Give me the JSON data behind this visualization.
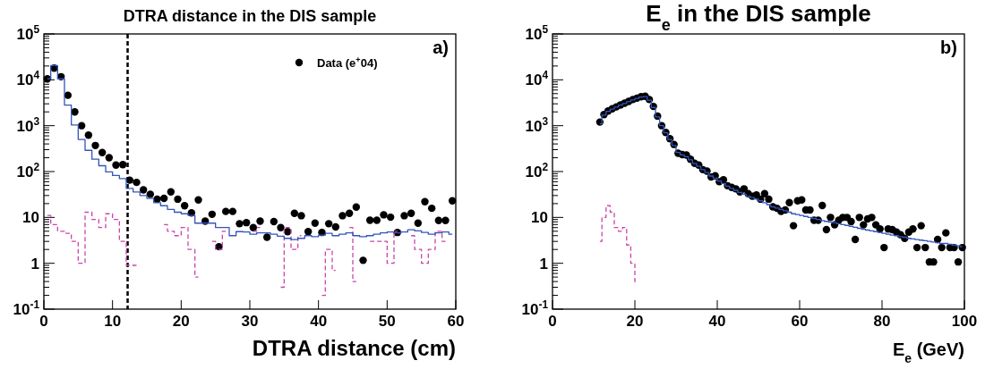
{
  "chart_data": [
    {
      "type": "scatter",
      "title": "DTRA distance in the DIS sample",
      "xlabel": "DTRA distance (cm)",
      "log": "y",
      "grid": false,
      "legend": "top right",
      "annotations": [
        "a)"
      ],
      "xlim": [
        0,
        60
      ],
      "xticks": [
        0,
        10,
        20,
        30,
        40,
        50,
        60
      ],
      "ylim": [
        0.1,
        100000
      ],
      "yticks": [
        {
          "value": 0.1,
          "label": "10$^{-1}$"
        },
        {
          "value": 1,
          "label": "1"
        },
        {
          "value": 10,
          "label": "10"
        },
        {
          "value": 100,
          "label": "10$^{2}$"
        },
        {
          "value": 1000,
          "label": "10$^{3}$"
        },
        {
          "value": 10000,
          "label": "10$^{4}$"
        },
        {
          "value": 100000,
          "label": "10$^{5}$"
        }
      ],
      "ref_lines": [
        {
          "axis": "x",
          "value": 12.2,
          "color": "#000000",
          "line_style": "dashed"
        }
      ],
      "series": [
        {
          "name": "Data (e$^{+}$04)",
          "marker": "circle",
          "color": "#000000",
          "x": [
            0.5,
            1.5,
            2.5,
            3.5,
            4.5,
            5.5,
            6.5,
            7.5,
            8.5,
            9.5,
            10.5,
            11.5,
            12.5,
            13.5,
            14.5,
            15.5,
            16.5,
            17.5,
            18.5,
            19.5,
            20.5,
            21.5,
            22.5,
            23.5,
            24.5,
            25.5,
            26.5,
            27.5,
            28.5,
            29.5,
            30.5,
            31.5,
            32.5,
            33.5,
            34.5,
            35.5,
            36.5,
            37.5,
            38.5,
            39.5,
            40.5,
            41.5,
            42.5,
            43.5,
            44.5,
            45.5,
            46.5,
            47.5,
            48.5,
            49.5,
            50.5,
            51.5,
            52.5,
            53.5,
            54.5,
            55.5,
            56.5,
            57.5,
            58.5,
            59.5
          ],
          "values": [
            10500,
            18000,
            11700,
            4600,
            2000,
            1000,
            620,
            370,
            260,
            200,
            138,
            142,
            65,
            58,
            40,
            32,
            25,
            26,
            36,
            25,
            18,
            12.6,
            24,
            8.3,
            11.7,
            2.3,
            13.5,
            13.5,
            7.3,
            7.7,
            6.0,
            8.3,
            3.7,
            8.1,
            6.0,
            4.9,
            12.3,
            10.9,
            4.9,
            7.5,
            4.7,
            7.3,
            6.2,
            10.9,
            12.3,
            16.8,
            1.16,
            8.7,
            8.7,
            11.4,
            10.1,
            4.7,
            10.9,
            12.3,
            7.5,
            22,
            15.8,
            8.6,
            8.6,
            23
          ]
        },
        {
          "type": "step",
          "marker": "none",
          "color": "#cc44aa",
          "line_style": "dashed",
          "x": [
            0.5,
            1.5,
            2.5,
            3.5,
            4.5,
            5.5,
            6.5,
            7.5,
            8.5,
            9.5,
            10.5,
            11.5,
            12.5,
            13.5,
            14.5,
            15.5,
            16.5,
            17.5,
            18.5,
            19.5,
            20.5,
            21.5,
            22.5,
            23.5,
            24.5,
            25.5,
            26.5,
            27.5,
            28.5,
            29.5,
            30.5,
            31.5,
            32.5,
            33.5,
            34.5,
            35.5,
            36.5,
            37.5,
            38.5,
            39.5,
            40.5,
            41.5,
            42.5,
            43.5,
            44.5,
            45.5,
            46.5,
            47.5,
            48.5,
            49.5,
            50.5,
            51.5,
            52.5,
            53.5,
            54.5,
            55.5,
            56.5,
            57.5,
            58.5
          ],
          "values": [
            11,
            7,
            5,
            4.5,
            3,
            1,
            13,
            9,
            6,
            12,
            9,
            3,
            0.9,
            0.9,
            null,
            null,
            null,
            7,
            5,
            4,
            6,
            2,
            0.5,
            null,
            3,
            2,
            5,
            null,
            null,
            null,
            5,
            6,
            null,
            null,
            0.3,
            6,
            2,
            4,
            null,
            null,
            0.2,
            2,
            0.7,
            null,
            6,
            0.4,
            null,
            3,
            3,
            3,
            1,
            5,
            null,
            4,
            2,
            1,
            2,
            5,
            3
          ]
        },
        {
          "type": "step",
          "marker": "none",
          "color": "#3355bb",
          "line_style": "solid",
          "x": [
            0.5,
            1.5,
            2.5,
            3.5,
            4.5,
            5.5,
            6.5,
            7.5,
            8.5,
            9.5,
            10.5,
            11.5,
            12.5,
            13.5,
            14.5,
            15.5,
            16.5,
            17.5,
            18.5,
            19.5,
            20.5,
            21.5,
            22.5,
            23.5,
            24.5,
            25.5,
            26.5,
            27.5,
            28.5,
            29.5,
            30.5,
            31.5,
            32.5,
            33.5,
            34.5,
            35.5,
            36.5,
            37.5,
            38.5,
            39.5,
            40.5,
            41.5,
            42.5,
            43.5,
            44.5,
            45.5,
            46.5,
            47.5,
            48.5,
            49.5,
            50.5,
            51.5,
            52.5,
            53.5,
            54.5,
            55.5,
            56.5,
            57.5,
            58.5,
            59.5
          ],
          "values": [
            10500,
            20500,
            10500,
            2800,
            1040,
            500,
            290,
            186,
            134,
            98,
            82,
            70,
            43,
            36,
            30,
            26,
            21,
            18,
            15,
            13,
            12,
            11,
            7.5,
            7.5,
            7.5,
            6,
            6,
            4,
            4.9,
            4.8,
            4.3,
            4.6,
            4.6,
            4.3,
            3.9,
            3.5,
            3.3,
            3.5,
            4.0,
            3.8,
            4.1,
            4.5,
            4.0,
            4.3,
            4.6,
            4.0,
            3.8,
            4.0,
            4.3,
            4.6,
            4.8,
            4.6,
            4.8,
            5.4,
            5.1,
            4.7,
            4.3,
            4.6,
            4.8,
            4.3
          ]
        }
      ]
    },
    {
      "type": "scatter",
      "title": "E$_{e}$ in the DIS sample",
      "xlabel": "E$_{e}$ (GeV)",
      "log": "y",
      "grid": false,
      "annotations": [
        "b)"
      ],
      "xlim": [
        0,
        100
      ],
      "xticks": [
        0,
        20,
        40,
        60,
        80,
        100
      ],
      "ylim": [
        0.1,
        100000
      ],
      "yticks": [
        {
          "value": 0.1,
          "label": "10$^{-1}$"
        },
        {
          "value": 1,
          "label": "1"
        },
        {
          "value": 10,
          "label": "10"
        },
        {
          "value": 100,
          "label": "10$^{2}$"
        },
        {
          "value": 1000,
          "label": "10$^{3}$"
        },
        {
          "value": 10000,
          "label": "10$^{4}$"
        },
        {
          "value": 100000,
          "label": "10$^{5}$"
        }
      ],
      "series": [
        {
          "marker": "circle",
          "color": "#000000",
          "x": [
            11.5,
            12.5,
            13.5,
            14.5,
            15.5,
            16.5,
            17.5,
            18.5,
            19.5,
            20.5,
            21.5,
            22.5,
            23.5,
            24.5,
            25.5,
            26.5,
            27.5,
            28.5,
            29.5,
            30.5,
            31.5,
            32.5,
            33.5,
            34.5,
            35.5,
            36.5,
            37.5,
            38.5,
            39.5,
            40.5,
            41.5,
            42.5,
            43.5,
            44.5,
            45.5,
            46.5,
            47.5,
            48.5,
            49.5,
            50.5,
            51.5,
            52.5,
            53.5,
            54.5,
            55.5,
            56.5,
            57.5,
            58.5,
            59.5,
            60.5,
            61.5,
            62.5,
            63.5,
            64.5,
            65.5,
            66.5,
            67.5,
            68.5,
            69.5,
            70.5,
            71.5,
            72.5,
            73.5,
            74.5,
            75.5,
            76.5,
            77.5,
            78.5,
            79.5,
            80.5,
            81.5,
            82.5,
            83.5,
            84.5,
            85.5,
            86.5,
            87.5,
            88.5,
            89.5,
            90.5,
            91.5,
            92.5,
            93.5,
            94.5,
            95.5,
            96.5,
            97.5,
            98.5,
            99.5
          ],
          "values": [
            1200,
            1740,
            2090,
            2340,
            2570,
            2820,
            3090,
            3390,
            3720,
            3980,
            4270,
            4370,
            3720,
            2630,
            1620,
            1000,
            710,
            520,
            390,
            250,
            234,
            229,
            186,
            151,
            138,
            110,
            102,
            76,
            81,
            60,
            66,
            49,
            45,
            42,
            36,
            42,
            33,
            29,
            31,
            25,
            33,
            25,
            17,
            15.8,
            13.5,
            14.5,
            21,
            6.6,
            23,
            24,
            14.5,
            14.5,
            8.7,
            8.7,
            18.2,
            5.4,
            10,
            6.9,
            8.7,
            10,
            10,
            8.1,
            3.3,
            10,
            6.9,
            9.3,
            10,
            6.9,
            5.6,
            2.2,
            5.6,
            5.4,
            4.8,
            4.2,
            3.5,
            4.8,
            5.6,
            2.2,
            6.6,
            2.2,
            1.07,
            1.07,
            3.3,
            2.2,
            4.6,
            2.2,
            2.2,
            1.07,
            2.2
          ]
        },
        {
          "type": "step",
          "marker": "none",
          "color": "#cc44aa",
          "line_style": "dashed",
          "x": [
            11.5,
            12.5,
            13.5,
            14.5,
            15.5,
            16.5,
            17.5,
            18.5,
            19.5,
            20.5
          ],
          "values": [
            3,
            10,
            18,
            13,
            6,
            5,
            6,
            2.5,
            1,
            0.4
          ]
        },
        {
          "type": "step",
          "marker": "none",
          "color": "#3355bb",
          "line_style": "solid",
          "x": [
            11.5,
            12.5,
            13.5,
            14.5,
            15.5,
            16.5,
            17.5,
            18.5,
            19.5,
            20.5,
            21.5,
            22.5,
            23.5,
            24.5,
            25.5,
            26.5,
            27.5,
            28.5,
            29.5,
            30.5,
            31.5,
            32.5,
            33.5,
            34.5,
            35.5,
            36.5,
            37.5,
            38.5,
            39.5,
            40.5,
            41.5,
            42.5,
            43.5,
            44.5,
            45.5,
            46.5,
            47.5,
            48.5,
            49.5,
            50.5,
            51.5,
            52.5,
            53.5,
            54.5,
            55.5,
            56.5,
            57.5,
            58.5,
            59.5,
            60.5,
            61.5,
            62.5,
            63.5,
            64.5,
            65.5,
            66.5,
            67.5,
            68.5,
            69.5,
            70.5,
            71.5,
            72.5,
            73.5,
            74.5,
            75.5,
            76.5,
            77.5,
            78.5,
            79.5,
            80.5,
            81.5,
            82.5,
            83.5,
            84.5,
            85.5,
            86.5,
            87.5,
            88.5,
            89.5,
            90.5,
            91.5,
            92.5,
            93.5,
            94.5,
            95.5,
            96.5,
            97.5,
            98.5,
            99.5
          ],
          "values": [
            1100,
            1700,
            2050,
            2300,
            2550,
            2800,
            3050,
            3350,
            3650,
            3950,
            4200,
            4300,
            3600,
            2500,
            1550,
            1000,
            700,
            500,
            370,
            260,
            230,
            210,
            180,
            150,
            130,
            110,
            95,
            80,
            72,
            62,
            55,
            48,
            43,
            39,
            35,
            32,
            29,
            27,
            25,
            23,
            21,
            19,
            17,
            16,
            15,
            14,
            13,
            12,
            11.5,
            11,
            10.5,
            10,
            9.5,
            9,
            8.5,
            8.2,
            7.9,
            7.6,
            7.3,
            7,
            6.7,
            6.4,
            6.1,
            5.8,
            5.5,
            5.3,
            5.1,
            4.9,
            4.7,
            4.5,
            4.3,
            4.1,
            4.0,
            3.8,
            3.7,
            3.5,
            3.4,
            3.3,
            3.2,
            3.1,
            3.0,
            2.9,
            2.8,
            2.7,
            2.7,
            2.6,
            2.5,
            2.4,
            2.3
          ]
        }
      ]
    }
  ]
}
